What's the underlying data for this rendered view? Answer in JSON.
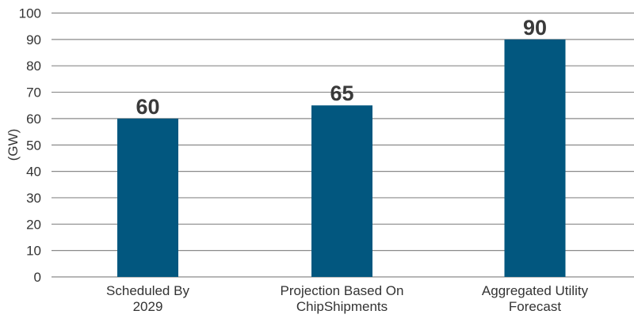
{
  "chart_data": {
    "type": "bar",
    "categories": [
      [
        "Scheduled By",
        "2029"
      ],
      [
        "Projection Based On",
        "ChipShipments"
      ],
      [
        "Aggregated Utility",
        "Forecast"
      ]
    ],
    "values": [
      60,
      65,
      90
    ],
    "data_labels": [
      "60",
      "65",
      "90"
    ],
    "title": "",
    "xlabel": "",
    "ylabel": "(GW)",
    "ylim": [
      0,
      100
    ],
    "yticks": [
      0,
      10,
      20,
      30,
      40,
      50,
      60,
      70,
      80,
      90,
      100
    ],
    "grid": true,
    "bar_color": "#02577f",
    "label_color": "#3a3a3a",
    "grid_color": "#8a8a8a"
  }
}
